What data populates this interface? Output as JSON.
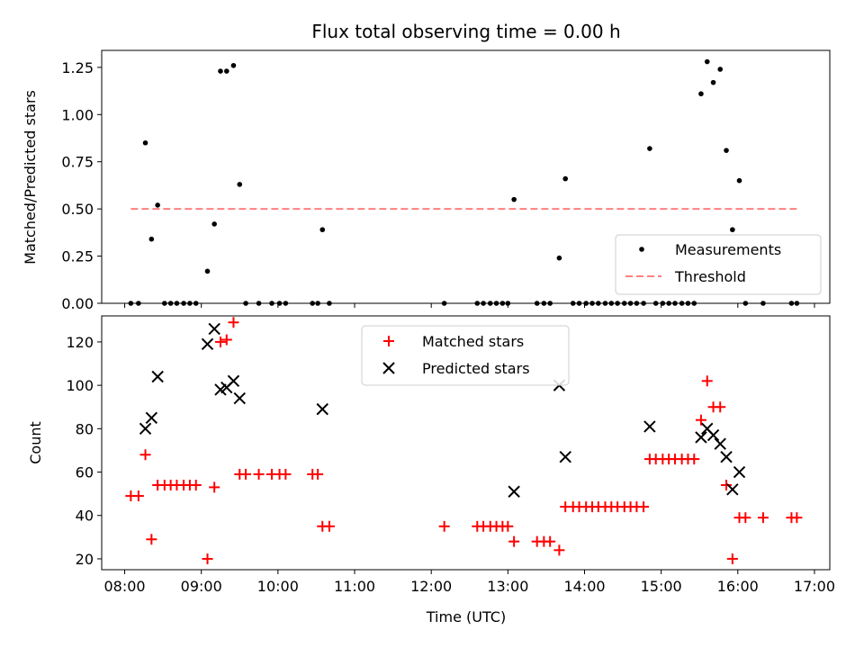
{
  "chart_data": [
    {
      "type": "scatter",
      "title": "Flux total observing time = 0.00 h",
      "ylabel": "Matched/Predicted stars",
      "xlabel": "",
      "xlim": [
        7.7,
        17.2
      ],
      "ylim": [
        0,
        1.34
      ],
      "yticks": [
        0,
        0.25,
        0.5,
        0.75,
        1.0,
        1.25
      ],
      "ytick_labels": [
        "0.00",
        "0.25",
        "0.50",
        "0.75",
        "1.00",
        "1.25"
      ],
      "xticks": [
        8,
        9,
        10,
        11,
        12,
        13,
        14,
        15,
        16,
        17
      ],
      "grid": false,
      "legend": {
        "position": "lower-right",
        "entries": [
          "Measurements",
          "Threshold"
        ]
      },
      "colors": {
        "measurements": "#000000",
        "threshold": "#ff8080"
      },
      "series": [
        {
          "name": "Measurements",
          "marker": "dot",
          "points": [
            [
              8.08,
              0
            ],
            [
              8.18,
              0
            ],
            [
              8.27,
              0.85
            ],
            [
              8.35,
              0.34
            ],
            [
              8.43,
              0.52
            ],
            [
              8.52,
              0
            ],
            [
              8.6,
              0
            ],
            [
              8.68,
              0
            ],
            [
              8.77,
              0
            ],
            [
              8.85,
              0
            ],
            [
              8.93,
              0
            ],
            [
              9.08,
              0.17
            ],
            [
              9.17,
              0.42
            ],
            [
              9.25,
              1.23
            ],
            [
              9.33,
              1.23
            ],
            [
              9.42,
              1.26
            ],
            [
              9.5,
              0.63
            ],
            [
              9.58,
              0
            ],
            [
              9.75,
              0
            ],
            [
              9.92,
              0
            ],
            [
              10.02,
              0
            ],
            [
              10.1,
              0
            ],
            [
              10.45,
              0
            ],
            [
              10.52,
              0
            ],
            [
              10.58,
              0.39
            ],
            [
              10.67,
              0
            ],
            [
              12.17,
              0
            ],
            [
              12.6,
              0
            ],
            [
              12.68,
              0
            ],
            [
              12.77,
              0
            ],
            [
              12.85,
              0
            ],
            [
              12.93,
              0
            ],
            [
              13.0,
              0
            ],
            [
              13.08,
              0.55
            ],
            [
              13.38,
              0
            ],
            [
              13.47,
              0
            ],
            [
              13.55,
              0
            ],
            [
              13.67,
              0.24
            ],
            [
              13.75,
              0.66
            ],
            [
              13.85,
              0
            ],
            [
              13.93,
              0
            ],
            [
              14.02,
              0
            ],
            [
              14.1,
              0
            ],
            [
              14.18,
              0
            ],
            [
              14.27,
              0
            ],
            [
              14.35,
              0
            ],
            [
              14.43,
              0
            ],
            [
              14.52,
              0
            ],
            [
              14.6,
              0
            ],
            [
              14.68,
              0
            ],
            [
              14.77,
              0
            ],
            [
              14.85,
              0.82
            ],
            [
              14.93,
              0
            ],
            [
              15.02,
              0
            ],
            [
              15.1,
              0
            ],
            [
              15.18,
              0
            ],
            [
              15.27,
              0
            ],
            [
              15.35,
              0
            ],
            [
              15.43,
              0
            ],
            [
              15.52,
              1.11
            ],
            [
              15.6,
              1.28
            ],
            [
              15.68,
              1.17
            ],
            [
              15.77,
              1.24
            ],
            [
              15.85,
              0.81
            ],
            [
              15.93,
              0.39
            ],
            [
              16.02,
              0.65
            ],
            [
              16.1,
              0
            ],
            [
              16.33,
              0
            ],
            [
              16.7,
              0
            ],
            [
              16.77,
              0
            ]
          ]
        },
        {
          "name": "Threshold",
          "style": "dashed-line",
          "points": [
            [
              8.08,
              0.5
            ],
            [
              16.77,
              0.5
            ]
          ]
        }
      ]
    },
    {
      "type": "scatter",
      "title": "",
      "ylabel": "Count",
      "xlabel": "Time (UTC)",
      "xlim": [
        7.7,
        17.2
      ],
      "ylim": [
        15,
        132
      ],
      "yticks": [
        20,
        40,
        60,
        80,
        100,
        120
      ],
      "ytick_labels": [
        "20",
        "40",
        "60",
        "80",
        "100",
        "120"
      ],
      "xticks": [
        8,
        9,
        10,
        11,
        12,
        13,
        14,
        15,
        16,
        17
      ],
      "xtick_labels": [
        "08:00",
        "09:00",
        "10:00",
        "11:00",
        "12:00",
        "13:00",
        "14:00",
        "15:00",
        "16:00",
        "17:00"
      ],
      "grid": false,
      "legend": {
        "position": "top-center",
        "entries": [
          "Matched stars",
          "Predicted stars"
        ]
      },
      "colors": {
        "matched": "#ff0000",
        "predicted": "#000000"
      },
      "series": [
        {
          "name": "Matched stars",
          "marker": "plus",
          "points": [
            [
              8.08,
              49
            ],
            [
              8.18,
              49
            ],
            [
              8.27,
              68
            ],
            [
              8.35,
              29
            ],
            [
              8.43,
              54
            ],
            [
              8.52,
              54
            ],
            [
              8.6,
              54
            ],
            [
              8.68,
              54
            ],
            [
              8.77,
              54
            ],
            [
              8.85,
              54
            ],
            [
              8.93,
              54
            ],
            [
              9.08,
              20
            ],
            [
              9.17,
              53
            ],
            [
              9.25,
              120
            ],
            [
              9.33,
              121
            ],
            [
              9.42,
              129
            ],
            [
              9.5,
              59
            ],
            [
              9.58,
              59
            ],
            [
              9.75,
              59
            ],
            [
              9.92,
              59
            ],
            [
              10.02,
              59
            ],
            [
              10.1,
              59
            ],
            [
              10.45,
              59
            ],
            [
              10.52,
              59
            ],
            [
              10.58,
              35
            ],
            [
              10.67,
              35
            ],
            [
              12.17,
              35
            ],
            [
              12.6,
              35
            ],
            [
              12.68,
              35
            ],
            [
              12.77,
              35
            ],
            [
              12.85,
              35
            ],
            [
              12.93,
              35
            ],
            [
              13.0,
              35
            ],
            [
              13.08,
              28
            ],
            [
              13.38,
              28
            ],
            [
              13.47,
              28
            ],
            [
              13.55,
              28
            ],
            [
              13.67,
              24
            ],
            [
              13.75,
              44
            ],
            [
              13.85,
              44
            ],
            [
              13.93,
              44
            ],
            [
              14.02,
              44
            ],
            [
              14.1,
              44
            ],
            [
              14.18,
              44
            ],
            [
              14.27,
              44
            ],
            [
              14.35,
              44
            ],
            [
              14.43,
              44
            ],
            [
              14.52,
              44
            ],
            [
              14.6,
              44
            ],
            [
              14.68,
              44
            ],
            [
              14.77,
              44
            ],
            [
              14.85,
              66
            ],
            [
              14.93,
              66
            ],
            [
              15.02,
              66
            ],
            [
              15.1,
              66
            ],
            [
              15.18,
              66
            ],
            [
              15.27,
              66
            ],
            [
              15.35,
              66
            ],
            [
              15.43,
              66
            ],
            [
              15.52,
              84
            ],
            [
              15.6,
              102
            ],
            [
              15.68,
              90
            ],
            [
              15.77,
              90
            ],
            [
              15.85,
              54
            ],
            [
              15.93,
              20
            ],
            [
              16.02,
              39
            ],
            [
              16.1,
              39
            ],
            [
              16.33,
              39
            ],
            [
              16.7,
              39
            ],
            [
              16.77,
              39
            ]
          ]
        },
        {
          "name": "Predicted stars",
          "marker": "x",
          "points": [
            [
              8.27,
              80
            ],
            [
              8.35,
              85
            ],
            [
              8.43,
              104
            ],
            [
              9.08,
              119
            ],
            [
              9.17,
              126
            ],
            [
              9.25,
              98
            ],
            [
              9.33,
              99
            ],
            [
              9.42,
              102
            ],
            [
              9.5,
              94
            ],
            [
              10.58,
              89
            ],
            [
              13.08,
              51
            ],
            [
              13.67,
              100
            ],
            [
              13.75,
              67
            ],
            [
              14.85,
              81
            ],
            [
              15.52,
              76
            ],
            [
              15.6,
              80
            ],
            [
              15.68,
              77
            ],
            [
              15.77,
              73
            ],
            [
              15.85,
              67
            ],
            [
              15.93,
              52
            ],
            [
              16.02,
              60
            ]
          ]
        }
      ]
    }
  ]
}
